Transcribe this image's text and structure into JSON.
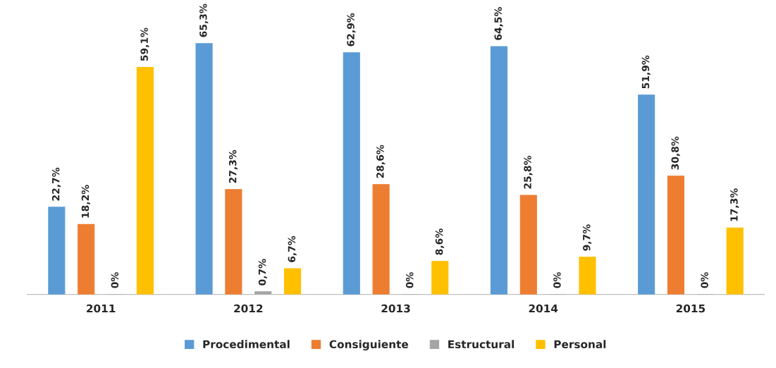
{
  "chart_data": {
    "type": "bar",
    "categories": [
      "2011",
      "2012",
      "2013",
      "2014",
      "2015"
    ],
    "series": [
      {
        "name": "Procedimental",
        "color": "#5b9bd5",
        "values": [
          22.7,
          65.3,
          62.9,
          64.5,
          51.9
        ],
        "value_labels": [
          "22,7%",
          "65,3%",
          "62,9%",
          "64,5%",
          "51,9%"
        ]
      },
      {
        "name": "Consiguiente",
        "color": "#ed7d31",
        "values": [
          18.2,
          27.3,
          28.6,
          25.8,
          30.8
        ],
        "value_labels": [
          "18,2%",
          "27,3%",
          "28,6%",
          "25,8%",
          "30,8%"
        ]
      },
      {
        "name": "Estructural",
        "color": "#a5a5a5",
        "values": [
          0,
          0.7,
          0,
          0,
          0
        ],
        "value_labels": [
          "0%",
          "0,7%",
          "0%",
          "0%",
          "0%"
        ]
      },
      {
        "name": "Personal",
        "color": "#ffc000",
        "values": [
          59.1,
          6.7,
          8.6,
          9.7,
          17.3
        ],
        "value_labels": [
          "59,1%",
          "6,7%",
          "8,6%",
          "9,7%",
          "17,3%"
        ]
      }
    ],
    "legend": "bottom",
    "grid": false
  }
}
